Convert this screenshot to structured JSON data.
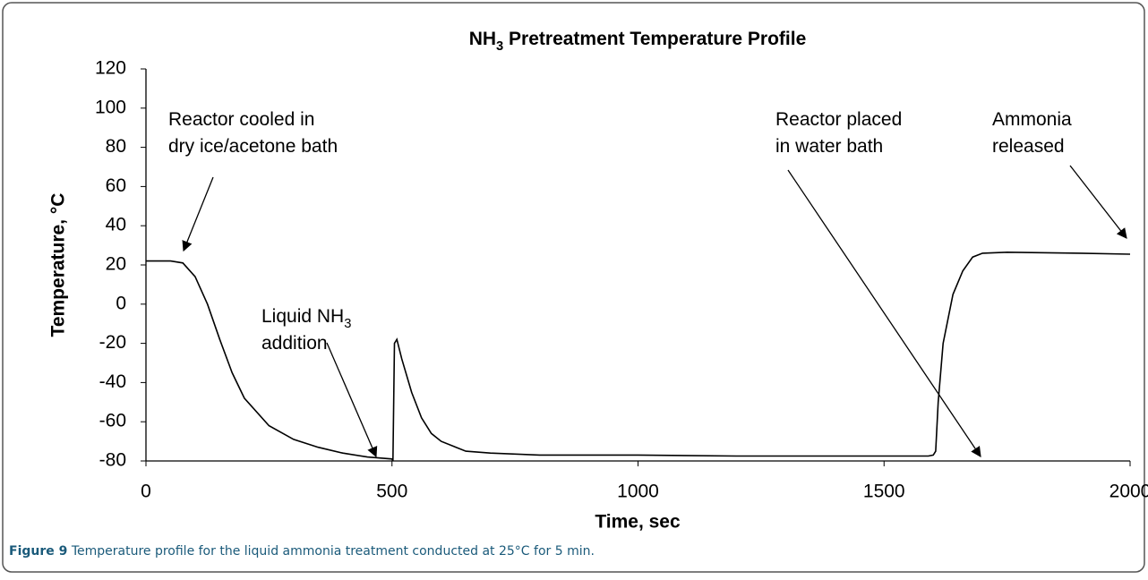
{
  "chart_data": {
    "type": "line",
    "title": [
      "NH",
      "3",
      " Pretreatment Temperature Profile"
    ],
    "xlabel": "Time, sec",
    "ylabel": "Temperature, °C",
    "x": [
      0,
      50,
      75,
      100,
      125,
      150,
      175,
      200,
      250,
      300,
      350,
      400,
      450,
      500,
      502,
      505,
      510,
      520,
      540,
      560,
      580,
      600,
      650,
      700,
      800,
      1000,
      1200,
      1400,
      1590,
      1600,
      1605,
      1610,
      1620,
      1640,
      1660,
      1680,
      1700,
      1750,
      1900,
      2000
    ],
    "values": [
      22,
      22,
      21,
      14,
      0,
      -18,
      -35,
      -48,
      -62,
      -69,
      -73,
      -76,
      -78,
      -79,
      -80,
      -20,
      -18,
      -28,
      -45,
      -58,
      -66,
      -70,
      -75,
      -76,
      -77,
      -77,
      -77.5,
      -77.5,
      -77.5,
      -77,
      -75,
      -50,
      -20,
      5,
      17,
      24,
      26,
      26.5,
      26,
      25.5
    ],
    "color": "#000000",
    "xlim": [
      0,
      2000
    ],
    "xticks": [
      0,
      500,
      1000,
      1500,
      2000
    ],
    "ylim": [
      -80,
      120
    ],
    "yticks": [
      -80,
      -60,
      -40,
      -20,
      0,
      20,
      40,
      60,
      80,
      100,
      120
    ],
    "grid": false,
    "annotations": [
      {
        "lines": [
          [
            "Reactor cooled in"
          ],
          [
            "dry ice/acetone bath"
          ]
        ]
      },
      {
        "lines": [
          [
            "Liquid NH",
            "3"
          ],
          [
            "addition"
          ]
        ]
      },
      {
        "lines": [
          [
            "Reactor placed"
          ],
          [
            "in water bath"
          ]
        ]
      },
      {
        "lines": [
          [
            "Ammonia"
          ],
          [
            "released"
          ]
        ]
      }
    ]
  },
  "caption": {
    "label": "Figure 9",
    "text": "Temperature profile for the liquid ammonia treatment conducted at 25°C for 5 min."
  }
}
